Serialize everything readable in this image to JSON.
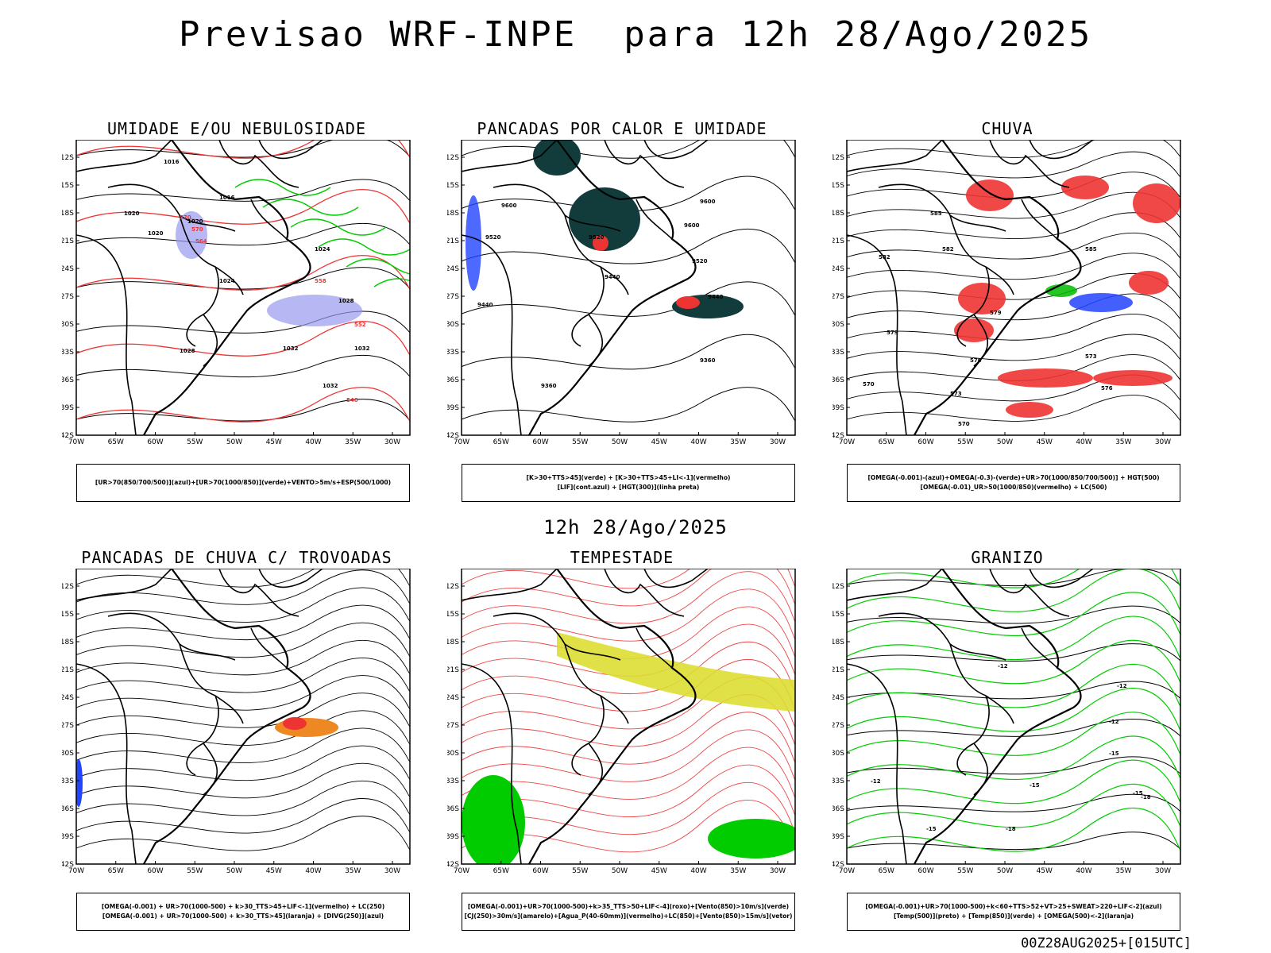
{
  "header": {
    "title": "Previsao WRF-INPE  para 12h 28/Ago/2025",
    "mid_date": "12h 28/Ago/2025",
    "run_stamp": "00Z28AUG2025+[015UTC]"
  },
  "axes": {
    "lat_labels": [
      "12S",
      "15S",
      "18S",
      "21S",
      "24S",
      "27S",
      "30S",
      "33S",
      "36S",
      "39S",
      "42S"
    ],
    "lon_labels": [
      "70W",
      "65W",
      "60W",
      "55W",
      "50W",
      "45W",
      "40W",
      "35W",
      "30W"
    ]
  },
  "colors": {
    "umidade_media": "#9999ee",
    "umidade_baixa": "#00cc00",
    "hgt_500": "#ee3333",
    "pancadas_verde": "#123c3c",
    "pancadas_vermelho": "#ee3333",
    "lif_azul": "#2244ff",
    "chuva_vermelho": "#ee3333",
    "chuva_verde": "#00bb00",
    "chuva_azul": "#2244ff",
    "trovoada_vermelho": "#ee3333",
    "trovoada_laranja": "#ee8822",
    "jato_amarelo": "#dddd33",
    "vento_verde": "#00cc00",
    "linhas_vermelhas": "#ee4444",
    "granizo_verde": "#00cc00"
  },
  "panels": [
    {
      "title": "UMIDADE E/OU NEBULOSIDADE",
      "legend": [
        "[UR>70(850/700/500)](azul)+[UR>70(1000/850)](verde)+VENTO>5m/s+ESP(500/1000)"
      ],
      "contour_labels": [
        "1016",
        "1016",
        "1020",
        "1020",
        "1020",
        "1024",
        "1024",
        "1028",
        "1028",
        "1032",
        "1032",
        "1032",
        "570",
        "570",
        "564",
        "558",
        "552",
        "546"
      ]
    },
    {
      "title": "PANCADAS POR CALOR E UMIDADE",
      "legend": [
        "[K>30+TTS>45](verde) + [K>30+TTS>45+LI<-1](vermelho)",
        "[LIF](cont.azul) + [HGT(300)](linha preta)"
      ],
      "contour_labels": [
        "9600",
        "9600",
        "9520",
        "9520",
        "9520",
        "9440",
        "9440",
        "9440",
        "9360",
        "9360",
        "9600"
      ]
    },
    {
      "title": "CHUVA",
      "legend": [
        "[OMEGA(-0.001)-(azul)+OMEGA(-0.3)-(verde)+UR>70(1000/850/700/500)] + HGT(500)",
        "[OMEGA(-0.01)_UR>50(1000/850)(vermelho) + LC(500)"
      ],
      "contour_labels": [
        "585",
        "582",
        "582",
        "585",
        "579",
        "579",
        "576",
        "573",
        "570",
        "573",
        "570",
        "576"
      ]
    },
    {
      "title": "PANCADAS DE CHUVA C/ TROVOADAS",
      "legend": [
        "[OMEGA(-0.001) + UR>70(1000-500) + k>30_TTS>45+LIF<-1](vermelho) + LC(250)",
        "[OMEGA(-0.001) + UR>70(1000-500) + k>30_TTS>45](laranja) + [DIVG(250)](azul)"
      ],
      "contour_labels": []
    },
    {
      "title": "TEMPESTADE",
      "legend": [
        "[OMEGA(-0.001)+UR>70(1000-500)+k>35_TTS>50+LIF<-4](roxo)+[Vento(850)>10m/s](verde)",
        "[CJ(250)>30m/s](amarelo)+[Agua_P(40-60mm)](vermelho)+LC(850)+[Vento(850)>15m/s](vetor)"
      ],
      "contour_labels": []
    },
    {
      "title": "GRANIZO",
      "legend": [
        "[OMEGA(-0.001)+UR>70(1000-500)+k<60+TTS>52+VT>25+SWEAT>220+LIF<-2](azul)",
        "[Temp(500)](preto) + [Temp(850)](verde) + [OMEGA(500)<-2](laranja)"
      ],
      "contour_labels": [
        "-12",
        "-12",
        "-12",
        "-15",
        "-15",
        "-15",
        "-18",
        "-18",
        "-15",
        "-12"
      ]
    }
  ]
}
